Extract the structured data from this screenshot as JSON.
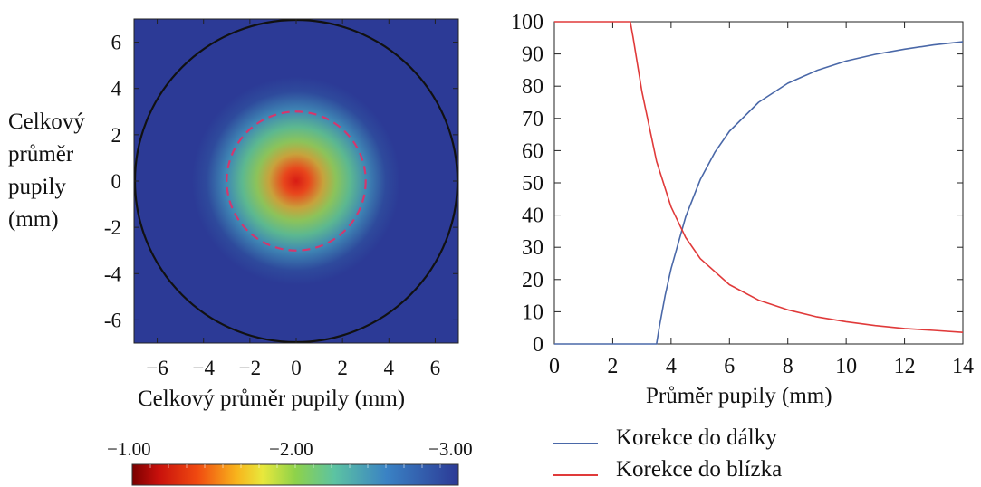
{
  "chart_data": [
    {
      "type": "heatmap",
      "title": "",
      "xlabel": "Celkový průměr pupily (mm)",
      "ylabel_lines": [
        "Celkový",
        "průměr",
        "pupily",
        "(mm)"
      ],
      "xlim": [
        -7,
        7
      ],
      "ylim": [
        -7,
        7
      ],
      "xticks": [
        -6,
        -4,
        -2,
        0,
        2,
        4,
        6
      ],
      "yticks": [
        6,
        4,
        2,
        0,
        -2,
        -4,
        -6
      ],
      "xtick_labels": [
        "−6",
        "−4",
        "−2",
        "0",
        "2",
        "4",
        "6"
      ],
      "ytick_labels": [
        "6",
        "4",
        "2",
        "0",
        "-2",
        "-4",
        "-6"
      ],
      "pupil_circle_diameter_mm": 14,
      "dashed_circle_diameter_mm": 6,
      "center_value": -1.0,
      "outer_value": -3.0,
      "colorbar": {
        "labels": [
          "−1.00",
          "−2.00",
          "−3.00"
        ],
        "values": [
          -1.0,
          -2.0,
          -3.0
        ],
        "colors": [
          "#7a0000",
          "#d81c14",
          "#f87a00",
          "#f8d21c",
          "#8ed24a",
          "#5cc3a2",
          "#3a82c4",
          "#2c3a96"
        ]
      },
      "colors": {
        "outer": "#2c3a96",
        "circle": "#111111",
        "dashed_circle": "#d2386e"
      }
    },
    {
      "type": "line",
      "title": "",
      "xlabel": "Průměr pupily (mm)",
      "ylabel": "",
      "xlim": [
        0,
        14
      ],
      "ylim": [
        0,
        100
      ],
      "xticks": [
        0,
        2,
        4,
        6,
        8,
        10,
        12,
        14
      ],
      "yticks": [
        0,
        10,
        20,
        30,
        40,
        50,
        60,
        70,
        80,
        90,
        100
      ],
      "grid": false,
      "legend_position": "below",
      "series": [
        {
          "name": "Korekce do dálky",
          "color": "#4a68a8",
          "x": [
            0,
            3.5,
            3.6,
            3.8,
            4.0,
            4.5,
            5.0,
            5.5,
            6.0,
            7.0,
            8.0,
            9.0,
            10.0,
            11.0,
            12.0,
            13.0,
            14.0
          ],
          "y": [
            0,
            0,
            5.5,
            15.2,
            23.4,
            39.5,
            51.0,
            59.5,
            66.0,
            75.0,
            80.9,
            84.9,
            87.8,
            89.9,
            91.5,
            92.8,
            93.8
          ]
        },
        {
          "name": "Korekce do blízka",
          "color": "#e03a3a",
          "x": [
            0,
            2.6,
            2.7,
            3.0,
            3.5,
            4.0,
            4.5,
            5.0,
            6.0,
            7.0,
            8.0,
            9.0,
            10.0,
            11.0,
            12.0,
            13.0,
            14.0
          ],
          "y": [
            100,
            100,
            95,
            78.4,
            56.7,
            42.5,
            33.0,
            26.5,
            18.4,
            13.6,
            10.6,
            8.4,
            6.9,
            5.7,
            4.8,
            4.2,
            3.6
          ]
        }
      ]
    }
  ]
}
